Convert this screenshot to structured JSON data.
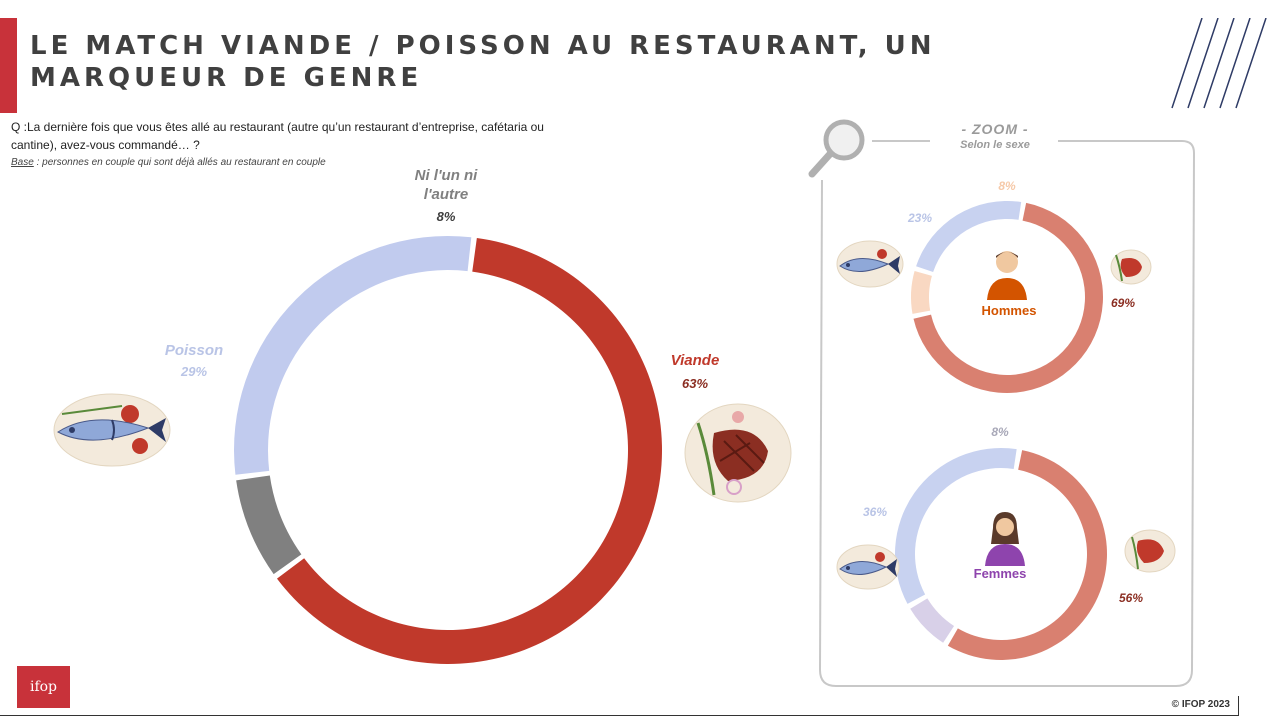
{
  "header": {
    "title": "LE MATCH VIANDE / POISSON AU RESTAURANT, UN MARQUEUR DE GENRE"
  },
  "question": {
    "text": "Q :La dernière fois que vous êtes allé au restaurant (autre qu’un restaurant d’entreprise, cafétaria ou cantine), avez-vous commandé… ?",
    "base_label": "Base",
    "base_text": " : personnes en couple qui sont déjà allés au restaurant en couple"
  },
  "chart_data": [
    {
      "type": "donut",
      "series": [
        {
          "name": "Viande",
          "value": 63,
          "label": "63%",
          "color": "#c0392b"
        },
        {
          "name": "Ni l'un ni l'autre",
          "value": 8,
          "label": "8%",
          "color": "#808080"
        },
        {
          "name": "Poisson",
          "value": 29,
          "label": "29%",
          "color": "#c1cbee"
        }
      ]
    },
    {
      "type": "donut",
      "center_label": "Hommes",
      "series": [
        {
          "value": 69,
          "label": "69%",
          "color": "#d98070"
        },
        {
          "value": 8,
          "label": "8%",
          "color": "#f9d8c2"
        },
        {
          "value": 23,
          "label": "23%",
          "color": "#c8d2f0"
        }
      ]
    },
    {
      "type": "donut",
      "center_label": "Femmes",
      "series": [
        {
          "value": 56,
          "label": "56%",
          "color": "#d98070"
        },
        {
          "value": 8,
          "label": "8%",
          "color": "#d8d0e8"
        },
        {
          "value": 36,
          "label": "36%",
          "color": "#c8d2f0"
        }
      ]
    }
  ],
  "zoom": {
    "title": "- ZOOM -",
    "subtitle": "Selon le sexe"
  },
  "labels": {
    "ni_line1": "Ni l'un ni",
    "ni_line2": "l'autre"
  },
  "colors": {
    "accent": "#c8323a",
    "hommes": "#d35400",
    "femmes": "#8e44ad"
  },
  "icons": [
    "fish-plate-icon",
    "steak-plate-icon",
    "magnifier-icon",
    "man-avatar-icon",
    "woman-avatar-icon",
    "ifop-logo"
  ],
  "footer": {
    "logo_text": "ifop",
    "copyright": "© IFOP 2023"
  }
}
